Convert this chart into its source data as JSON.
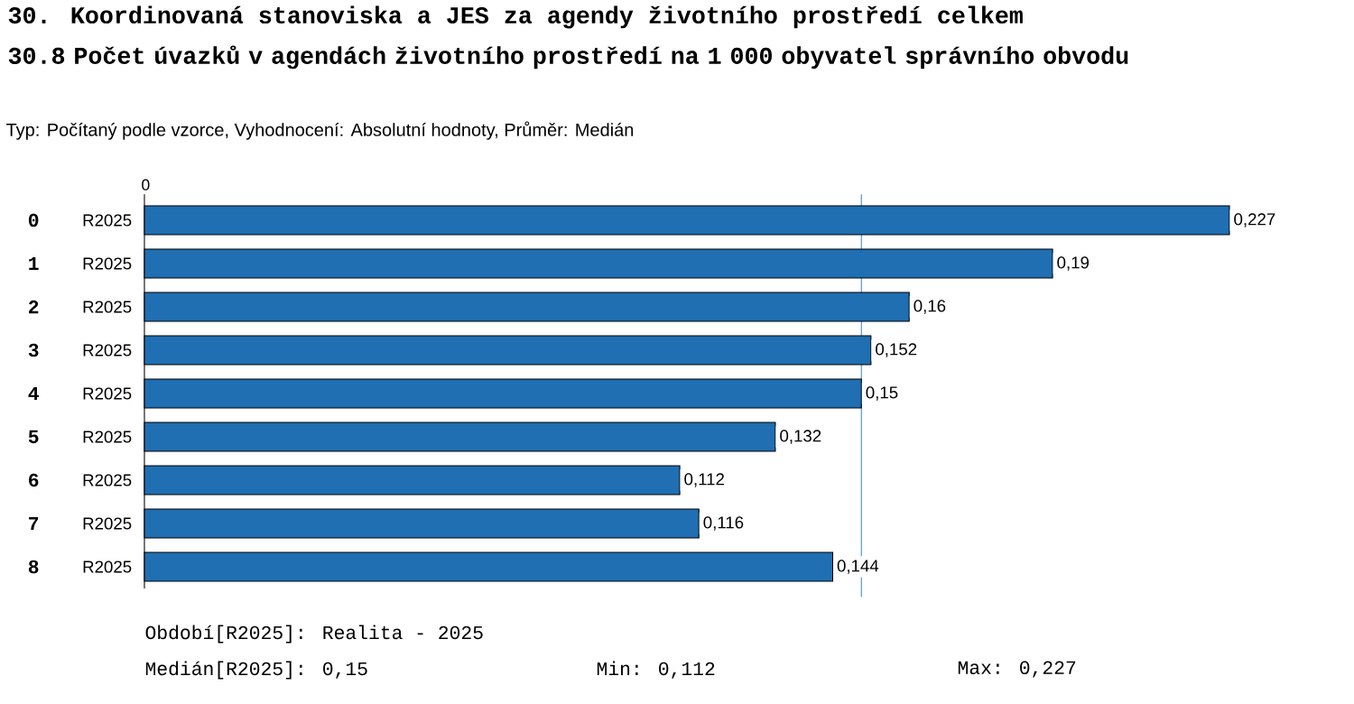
{
  "chart_data": {
    "type": "bar",
    "orientation": "horizontal",
    "title": "30. Koordinovaná stanoviska a JES za agendy životního prostředí celkem",
    "subtitle": "30.8 Počet úvazků v agendách životního prostředí na 1 000 obyvatel správního obvodu",
    "categories": [
      "0",
      "1",
      "2",
      "3",
      "4",
      "5",
      "6",
      "7",
      "8"
    ],
    "series": [
      {
        "name": "R2025",
        "color": "#1f6fb2",
        "values": [
          0.227,
          0.19,
          0.16,
          0.152,
          0.15,
          0.132,
          0.112,
          0.116,
          0.144
        ],
        "value_labels": [
          "0,227",
          "0,19",
          "0,16",
          "0,152",
          "0,15",
          "0,132",
          "0,112",
          "0,116",
          "0,144"
        ]
      }
    ],
    "xlim": [
      0,
      0.227
    ],
    "ref_lines": [
      {
        "axis": "x",
        "value": 0.15,
        "color": "#3a8fd6"
      }
    ],
    "annotations": [
      "Typ: Počítaný podle vzorce, Vyhodnocení: Absolutní hodnoty, Průměr: Medián",
      "Období[R2025]: Realita - 2025",
      "Medián[R2025]: 0,15",
      "Min: 0,112",
      "Max: 0,227",
      "0"
    ]
  }
}
